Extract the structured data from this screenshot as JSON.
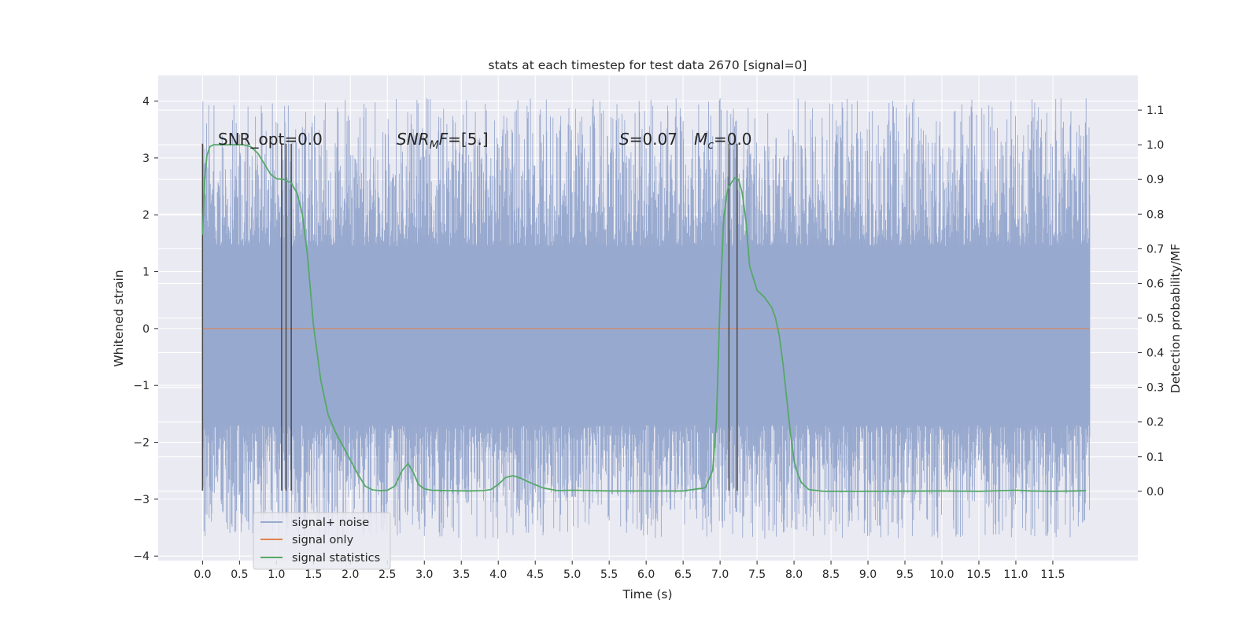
{
  "chart_data": {
    "type": "line",
    "title": "stats at each timestep for test data 2670 [signal=0]",
    "xlabel": "Time (s)",
    "ylabel": "Whitened strain",
    "ylabel_right": "Detection probability/MF",
    "xlim": [
      -0.6,
      12.65
    ],
    "ylim": [
      -4.08,
      4.45
    ],
    "ylim_right": [
      -0.2,
      1.2
    ],
    "grid": true,
    "legend_position": "lower-left",
    "x_ticks": [
      "0.0",
      "0.5",
      "1.0",
      "1.5",
      "2.0",
      "2.5",
      "3.0",
      "3.5",
      "4.0",
      "4.5",
      "5.0",
      "5.5",
      "6.0",
      "6.5",
      "7.0",
      "7.5",
      "8.0",
      "8.5",
      "9.0",
      "9.5",
      "10.0",
      "10.5",
      "11.0",
      "11.5"
    ],
    "y_ticks": [
      "4",
      "3",
      "2",
      "1",
      "0",
      "−1",
      "−2",
      "−3",
      "−4"
    ],
    "y_ticks_right": [
      "1.1",
      "1.0",
      "0.9",
      "0.8",
      "0.7",
      "0.6",
      "0.5",
      "0.4",
      "0.3",
      "0.2",
      "0.1",
      "0.0"
    ],
    "annotations": {
      "snr_opt": "SNR_opt=0.0",
      "snr_mf_main": "SNR",
      "snr_mf_sub": "M",
      "snr_mf_tail": "F=[5.]",
      "s_main": "S",
      "s_val": "=0.07",
      "mc_main": "M",
      "mc_sub": "c",
      "mc_val": "=0.0"
    },
    "legend": [
      "signal+ noise",
      "signal only",
      "signal statistics"
    ],
    "colors": {
      "noise": "#98a9cf",
      "signal": "#dd8452",
      "stats": "#55a868",
      "marker": "#4a4a4a",
      "background": "#eaeaf2",
      "grid": "#ffffff"
    },
    "noise": {
      "t_start": 0.0,
      "t_end": 12.0,
      "core_band": [
        -1.7,
        1.45
      ],
      "peak_max": 4.05,
      "trough_min": -3.7
    },
    "series": [
      {
        "name": "signal only",
        "x": [
          0.0,
          12.0
        ],
        "y": [
          0.0,
          0.0
        ]
      },
      {
        "name": "signal statistics",
        "axis": "right",
        "x": [
          0.0,
          0.03,
          0.06,
          0.1,
          0.15,
          0.25,
          0.4,
          0.55,
          0.65,
          0.75,
          0.85,
          0.92,
          1.0,
          1.1,
          1.2,
          1.28,
          1.35,
          1.42,
          1.5,
          1.6,
          1.7,
          1.8,
          1.9,
          2.0,
          2.1,
          2.2,
          2.3,
          2.4,
          2.5,
          2.6,
          2.7,
          2.78,
          2.85,
          2.92,
          3.0,
          3.1,
          3.3,
          3.6,
          3.8,
          3.9,
          4.0,
          4.1,
          4.2,
          4.3,
          4.4,
          4.6,
          4.8,
          5.0,
          5.5,
          6.0,
          6.5,
          6.8,
          6.9,
          6.95,
          7.0,
          7.05,
          7.1,
          7.15,
          7.2,
          7.25,
          7.3,
          7.35,
          7.4,
          7.5,
          7.6,
          7.7,
          7.75,
          7.8,
          7.85,
          7.9,
          7.95,
          8.0,
          8.05,
          8.1,
          8.2,
          8.4,
          9.0,
          10.0,
          10.5,
          11.0,
          11.2,
          11.5,
          11.8,
          11.95
        ],
        "y": [
          0.74,
          0.9,
          0.97,
          0.995,
          1.0,
          1.0,
          1.0,
          1.0,
          0.995,
          0.975,
          0.94,
          0.915,
          0.902,
          0.9,
          0.89,
          0.86,
          0.8,
          0.68,
          0.48,
          0.32,
          0.22,
          0.17,
          0.13,
          0.09,
          0.05,
          0.015,
          0.004,
          0.002,
          0.003,
          0.015,
          0.06,
          0.08,
          0.055,
          0.02,
          0.007,
          0.003,
          0.002,
          0.001,
          0.002,
          0.005,
          0.02,
          0.04,
          0.045,
          0.038,
          0.028,
          0.01,
          0.002,
          0.003,
          0.001,
          0.001,
          0.001,
          0.01,
          0.06,
          0.2,
          0.55,
          0.79,
          0.87,
          0.89,
          0.905,
          0.9,
          0.86,
          0.78,
          0.65,
          0.58,
          0.56,
          0.53,
          0.5,
          0.45,
          0.37,
          0.27,
          0.17,
          0.09,
          0.05,
          0.025,
          0.005,
          0.0,
          0.0,
          0.001,
          0.0,
          0.003,
          0.001,
          0.0,
          0.001,
          0.002
        ]
      }
    ],
    "marker_lines": {
      "x": [
        0.0,
        1.07,
        1.13,
        1.2,
        7.12,
        7.23
      ],
      "y_top": 3.25,
      "y_bottom": -2.85
    }
  }
}
